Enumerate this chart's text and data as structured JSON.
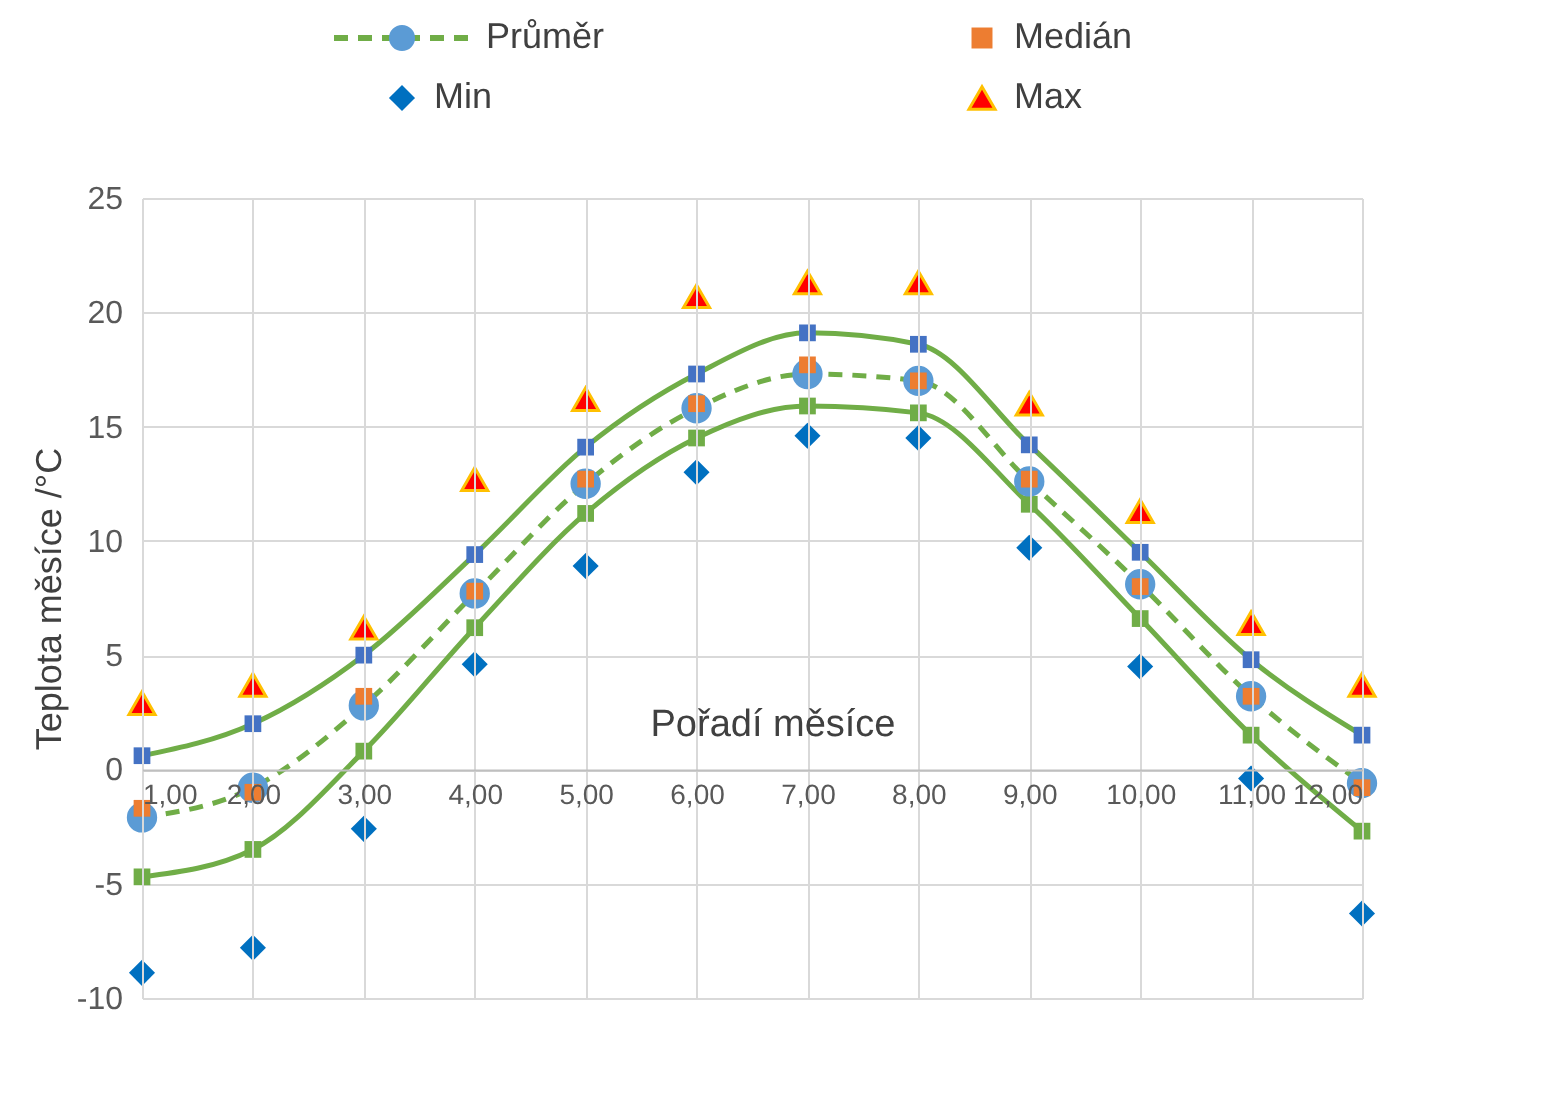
{
  "chart_data": {
    "type": "line",
    "xlabel": "Pořadí měsíce",
    "ylabel": "Teplota měsíce /°C",
    "x": [
      1,
      2,
      3,
      4,
      5,
      6,
      7,
      8,
      9,
      10,
      11,
      12
    ],
    "xlim": [
      1,
      12
    ],
    "xticks": [
      {
        "value": 1,
        "label": "1,00"
      },
      {
        "value": 2,
        "label": "2,00"
      },
      {
        "value": 3,
        "label": "3,00"
      },
      {
        "value": 4,
        "label": "4,00"
      },
      {
        "value": 5,
        "label": "5,00"
      },
      {
        "value": 6,
        "label": "6,00"
      },
      {
        "value": 7,
        "label": "7,00"
      },
      {
        "value": 8,
        "label": "8,00"
      },
      {
        "value": 9,
        "label": "9,00"
      },
      {
        "value": 10,
        "label": "10,00"
      },
      {
        "value": 11,
        "label": "11,00"
      },
      {
        "value": 12,
        "label": "12,00"
      }
    ],
    "ylim": [
      -10,
      25
    ],
    "yticks": [
      -10,
      -5,
      0,
      5,
      10,
      15,
      20,
      25
    ],
    "grid": true,
    "legend": "top",
    "series": [
      {
        "type": "line",
        "color": "#70ad47",
        "line_style": "solid",
        "marker": "square",
        "colors": [
          "#4472c4",
          "#4472c4",
          "#4472c4",
          "#4472c4",
          "#4472c4",
          "#4472c4",
          "#4472c4",
          "#4472c4",
          "#4472c4",
          "#4472c4",
          "#4472c4",
          "#4472c4"
        ],
        "values": [
          0.6,
          2.0,
          5.0,
          9.4,
          14.1,
          17.3,
          19.1,
          18.6,
          14.2,
          9.5,
          4.8,
          1.5
        ]
      },
      {
        "type": "line",
        "color": "#70ad47",
        "line_style": "solid",
        "marker": "square",
        "values": [
          -4.7,
          -3.5,
          0.8,
          6.2,
          11.2,
          14.5,
          15.9,
          15.6,
          11.6,
          6.6,
          1.5,
          -2.7
        ]
      },
      {
        "name": "Průměr",
        "color": "#70ad47",
        "line_style": "dashed",
        "marker": "circle",
        "colors": [
          "#5b9bd5",
          "#5b9bd5",
          "#5b9bd5",
          "#5b9bd5",
          "#5b9bd5",
          "#5b9bd5",
          "#5b9bd5",
          "#5b9bd5",
          "#5b9bd5",
          "#5b9bd5",
          "#5b9bd5",
          "#5b9bd5"
        ],
        "values": [
          -2.1,
          -0.8,
          2.8,
          7.7,
          12.5,
          15.8,
          17.3,
          17.0,
          12.6,
          8.1,
          3.2,
          -0.6
        ]
      },
      {
        "name": "Medián",
        "type": "scatter",
        "color": "#ed7d31",
        "marker": "square",
        "values": [
          -1.7,
          -1.0,
          3.2,
          7.8,
          12.7,
          16.0,
          17.7,
          17.0,
          12.7,
          8.0,
          3.2,
          -0.8
        ]
      },
      {
        "name": "Min",
        "type": "scatter",
        "color": "#0070c0",
        "marker": "diamond",
        "values": [
          -8.9,
          -7.8,
          -2.6,
          4.6,
          8.9,
          13.0,
          14.6,
          14.5,
          9.7,
          4.5,
          -0.4,
          -6.3
        ]
      },
      {
        "name": "Max",
        "type": "scatter",
        "color": "#ff0000",
        "marker": "triangle",
        "values": [
          2.9,
          3.7,
          6.2,
          12.7,
          16.2,
          20.7,
          21.3,
          21.3,
          16.0,
          11.3,
          6.4,
          3.7
        ]
      }
    ]
  }
}
